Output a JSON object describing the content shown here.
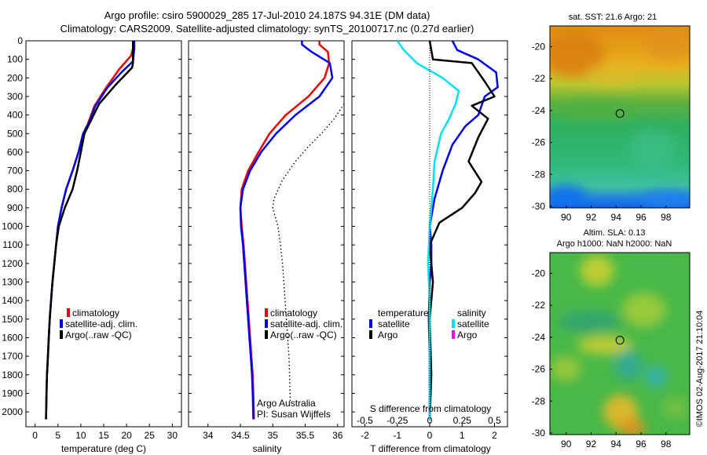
{
  "header": {
    "title_line1": "Argo profile: csiro 5900029_285 17-Jul-2010 24.187S 94.31E (DM data)",
    "title_line2": "Climatology: CARS2009. Satellite-adjusted climatology: synTS_20100717.nc (0.27d earlier)"
  },
  "colors": {
    "climatology": "#ee0000",
    "satellite": "#0000ee",
    "argo": "#000000",
    "satellite_diff": "#00e0f0",
    "argo_salinity_diff": "#ff00ff"
  },
  "chart_data": [
    {
      "type": "line",
      "xlabel": "temperature (deg C)",
      "ylabel": "",
      "xlim": [
        -2,
        32
      ],
      "ylim": [
        2080,
        0
      ],
      "xticks": [
        0,
        5,
        10,
        15,
        20,
        25,
        30
      ],
      "yticks": [
        0,
        100,
        200,
        300,
        400,
        500,
        600,
        700,
        800,
        900,
        1000,
        1100,
        1200,
        1300,
        1400,
        1500,
        1600,
        1700,
        1800,
        1900,
        2000
      ],
      "legend": [
        "climatology",
        "satellite-adj. clim.",
        "Argo(..raw -QC)"
      ],
      "legend_position": "lower-right",
      "series": [
        {
          "name": "climatology",
          "color": "#ee0000",
          "x": [
            21.4,
            21.4,
            21.0,
            18.5,
            15.6,
            13.0,
            11.5,
            10.5,
            9.5,
            8.2,
            6.8,
            5.8,
            5.0,
            4.6,
            4.2,
            3.8,
            3.5,
            3.2,
            3.0,
            2.8,
            2.6,
            2.5,
            2.4
          ],
          "y": [
            0,
            40,
            80,
            150,
            250,
            350,
            450,
            500,
            600,
            700,
            800,
            900,
            1000,
            1100,
            1200,
            1300,
            1400,
            1500,
            1600,
            1700,
            1800,
            1900,
            2040
          ]
        },
        {
          "name": "satellite-adj. clim.",
          "color": "#0000ee",
          "x": [
            21.7,
            21.7,
            21.4,
            18.9,
            15.9,
            13.2,
            11.6,
            10.5,
            9.5,
            8.2,
            6.8,
            5.8,
            5.0,
            4.6,
            4.2,
            3.8,
            3.5,
            3.2,
            3.0,
            2.8,
            2.6,
            2.5,
            2.4
          ],
          "y": [
            0,
            40,
            110,
            170,
            250,
            350,
            450,
            500,
            600,
            700,
            800,
            900,
            1000,
            1100,
            1200,
            1300,
            1400,
            1500,
            1600,
            1700,
            1800,
            1900,
            2040
          ]
        },
        {
          "name": "Argo(..raw -QC)",
          "color": "#000000",
          "x": [
            21.4,
            21.4,
            21.4,
            21.2,
            17.5,
            14.0,
            12.0,
            10.8,
            10.0,
            9.2,
            8.2,
            6.5,
            5.2,
            4.6,
            4.2,
            3.8,
            3.5,
            3.2,
            3.0,
            2.8,
            2.6,
            2.5,
            2.4
          ],
          "y": [
            0,
            60,
            120,
            145,
            240,
            340,
            440,
            500,
            600,
            700,
            800,
            900,
            1000,
            1100,
            1200,
            1300,
            1400,
            1500,
            1600,
            1700,
            1800,
            1900,
            2040
          ]
        }
      ]
    },
    {
      "type": "line",
      "xlabel": "salinity",
      "ylabel": "",
      "xlim": [
        33.7,
        36.1
      ],
      "ylim": [
        2080,
        0
      ],
      "xticks": [
        34,
        34.5,
        35,
        35.5,
        36
      ],
      "legend": [
        "climatology",
        "satellite-adj. clim.",
        "Argo(..raw -QC)"
      ],
      "legend_position": "lower-right",
      "annotations": [
        "Argo Australia",
        "PI: Susan Wijffels"
      ],
      "series": [
        {
          "name": "climatology",
          "color": "#ee0000",
          "x": [
            35.72,
            35.72,
            35.85,
            35.87,
            35.8,
            35.55,
            35.2,
            34.95,
            34.78,
            34.62,
            34.52,
            34.5,
            34.52,
            34.55,
            34.57,
            34.59,
            34.61,
            34.63,
            34.65,
            34.67,
            34.69,
            34.7,
            34.71
          ],
          "y": [
            0,
            20,
            60,
            120,
            200,
            300,
            400,
            500,
            600,
            700,
            800,
            900,
            1000,
            1100,
            1200,
            1300,
            1400,
            1500,
            1600,
            1700,
            1800,
            1900,
            2040
          ]
        },
        {
          "name": "satellite-adj. clim.",
          "color": "#0000ee",
          "x": [
            35.45,
            35.45,
            35.6,
            35.88,
            35.92,
            35.72,
            35.35,
            35.05,
            34.82,
            34.65,
            34.54,
            34.5,
            34.51,
            34.54,
            34.56,
            34.58,
            34.6,
            34.62,
            34.64,
            34.66,
            34.68,
            34.69,
            34.7
          ],
          "y": [
            0,
            20,
            60,
            120,
            200,
            300,
            400,
            500,
            600,
            700,
            800,
            900,
            1000,
            1100,
            1200,
            1300,
            1400,
            1500,
            1600,
            1700,
            1800,
            1900,
            2040
          ]
        },
        {
          "name": "dotted",
          "color": "#000000",
          "style": "dotted",
          "x": [
            36.1,
            35.95,
            35.75,
            35.55,
            35.35,
            35.15,
            35.02,
            35.0,
            35.08,
            35.12,
            35.15,
            35.17,
            35.19,
            35.21,
            35.23,
            35.25,
            35.27
          ],
          "y": [
            340,
            420,
            500,
            570,
            650,
            750,
            850,
            900,
            1000,
            1100,
            1200,
            1300,
            1400,
            1500,
            1600,
            1700,
            1950
          ]
        }
      ]
    },
    {
      "type": "line",
      "xlabel": "T difference from climatology",
      "top_axis_label": "S difference from climatology",
      "xlim": [
        -2.4,
        2.4
      ],
      "ylim": [
        2080,
        0
      ],
      "xticks": [
        -2,
        -1,
        0,
        1,
        2
      ],
      "top_ticks": [
        "-0.5",
        "-0.25",
        "0",
        "0.25",
        "0.5"
      ],
      "legend_temperature": {
        "title": "temperature",
        "items": [
          "satellite",
          "Argo"
        ]
      },
      "legend_salinity": {
        "title": "salinity",
        "items": [
          "satellite",
          "Argo"
        ]
      },
      "series": [
        {
          "name": "temperature satellite",
          "color": "#0000ee",
          "x": [
            0.7,
            0.85,
            1.5,
            2.05,
            2.1,
            1.7,
            1.5,
            1.1,
            0.7,
            0.4,
            0.15,
            0.0,
            0.05,
            0.05,
            0.0,
            -0.03,
            0.0,
            0.0,
            0.0
          ],
          "y": [
            0,
            50,
            100,
            170,
            250,
            300,
            400,
            460,
            560,
            700,
            850,
            1000,
            1100,
            1200,
            1300,
            1500,
            1700,
            1900,
            2040
          ]
        },
        {
          "name": "temperature Argo",
          "color": "#000000",
          "x": [
            0.0,
            0.1,
            1.3,
            1.5,
            1.7,
            2.0,
            1.3,
            1.8,
            1.5,
            1.2,
            1.6,
            1.4,
            1.0,
            0.3,
            0.0,
            0.1,
            0.0,
            0.05,
            0.0
          ],
          "y": [
            0,
            100,
            120,
            170,
            220,
            300,
            350,
            420,
            520,
            650,
            760,
            820,
            900,
            980,
            1100,
            1300,
            1500,
            1800,
            2040
          ]
        },
        {
          "name": "salinity satellite",
          "color": "#00e0f0",
          "x": [
            -1.0,
            -0.8,
            -0.4,
            0.4,
            0.9,
            0.8,
            0.6,
            0.35,
            0.15,
            0.1,
            0.0,
            -0.05,
            0.0,
            0.0,
            0.0
          ],
          "y": [
            0,
            50,
            120,
            200,
            270,
            340,
            420,
            500,
            650,
            800,
            1000,
            1200,
            1400,
            1700,
            2040
          ]
        }
      ]
    }
  ],
  "maps": {
    "sst": {
      "title": "sat. SST: 21.6 Argo: 21",
      "xticks": [
        "90",
        "92",
        "94",
        "96",
        "98"
      ],
      "yticks": [
        "-20",
        "-22",
        "-24",
        "-26",
        "-28",
        "-30"
      ]
    },
    "sla": {
      "title_line1": "Altim. SLA: 0.13",
      "title_line2": "Argo h1000: NaN h2000: NaN",
      "xticks": [
        "90",
        "92",
        "94",
        "96",
        "98"
      ],
      "yticks": [
        "-20",
        "-22",
        "-24",
        "-26",
        "-28",
        "-30"
      ]
    },
    "argo_lon": 94.31,
    "argo_lat": -24.187
  },
  "footer": {
    "stamp": "©IMOS 02-Aug-2017 21:10:04"
  }
}
